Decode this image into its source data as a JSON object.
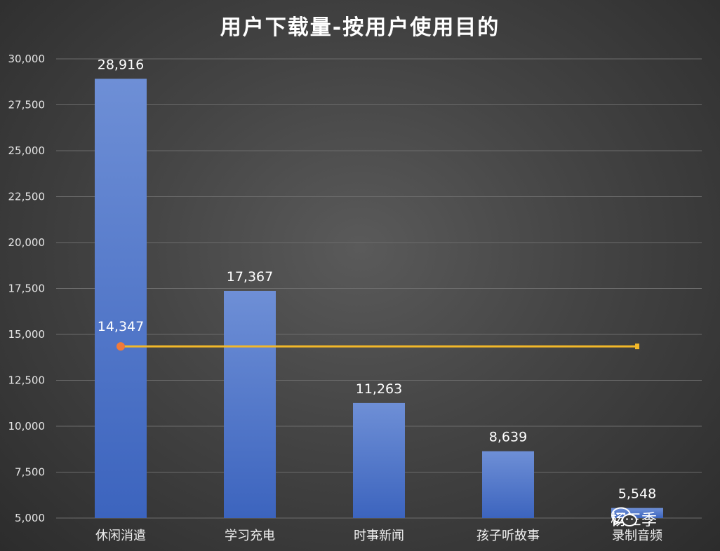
{
  "chart_data": {
    "type": "bar",
    "title": "用户下载量-按用户使用目的",
    "categories": [
      "休闲消遣",
      "学习充电",
      "时事新闻",
      "孩子听故事",
      "录制音频"
    ],
    "values": [
      28916,
      17367,
      11263,
      8639,
      5548
    ],
    "value_labels": [
      "28,916",
      "17,367",
      "11,263",
      "8,639",
      "5,548"
    ],
    "ylim": [
      5000,
      30000
    ],
    "yticks": [
      5000,
      7500,
      10000,
      12500,
      15000,
      17500,
      20000,
      22500,
      25000,
      27500,
      30000
    ],
    "ytick_labels": [
      "5,000",
      "7,500",
      "10,000",
      "12,500",
      "15,000",
      "17,500",
      "20,000",
      "22,500",
      "25,000",
      "27,500",
      "30,000"
    ],
    "grid": true,
    "bar_color_top": "#6e8fd6",
    "bar_color_bottom": "#3c64be",
    "average_line": {
      "value": 14347,
      "label": "14,347",
      "line_color": "#f2b829",
      "marker_color": "#f07a3a"
    }
  },
  "watermark": {
    "text": "杨三季",
    "icon": "wechat-icon"
  }
}
